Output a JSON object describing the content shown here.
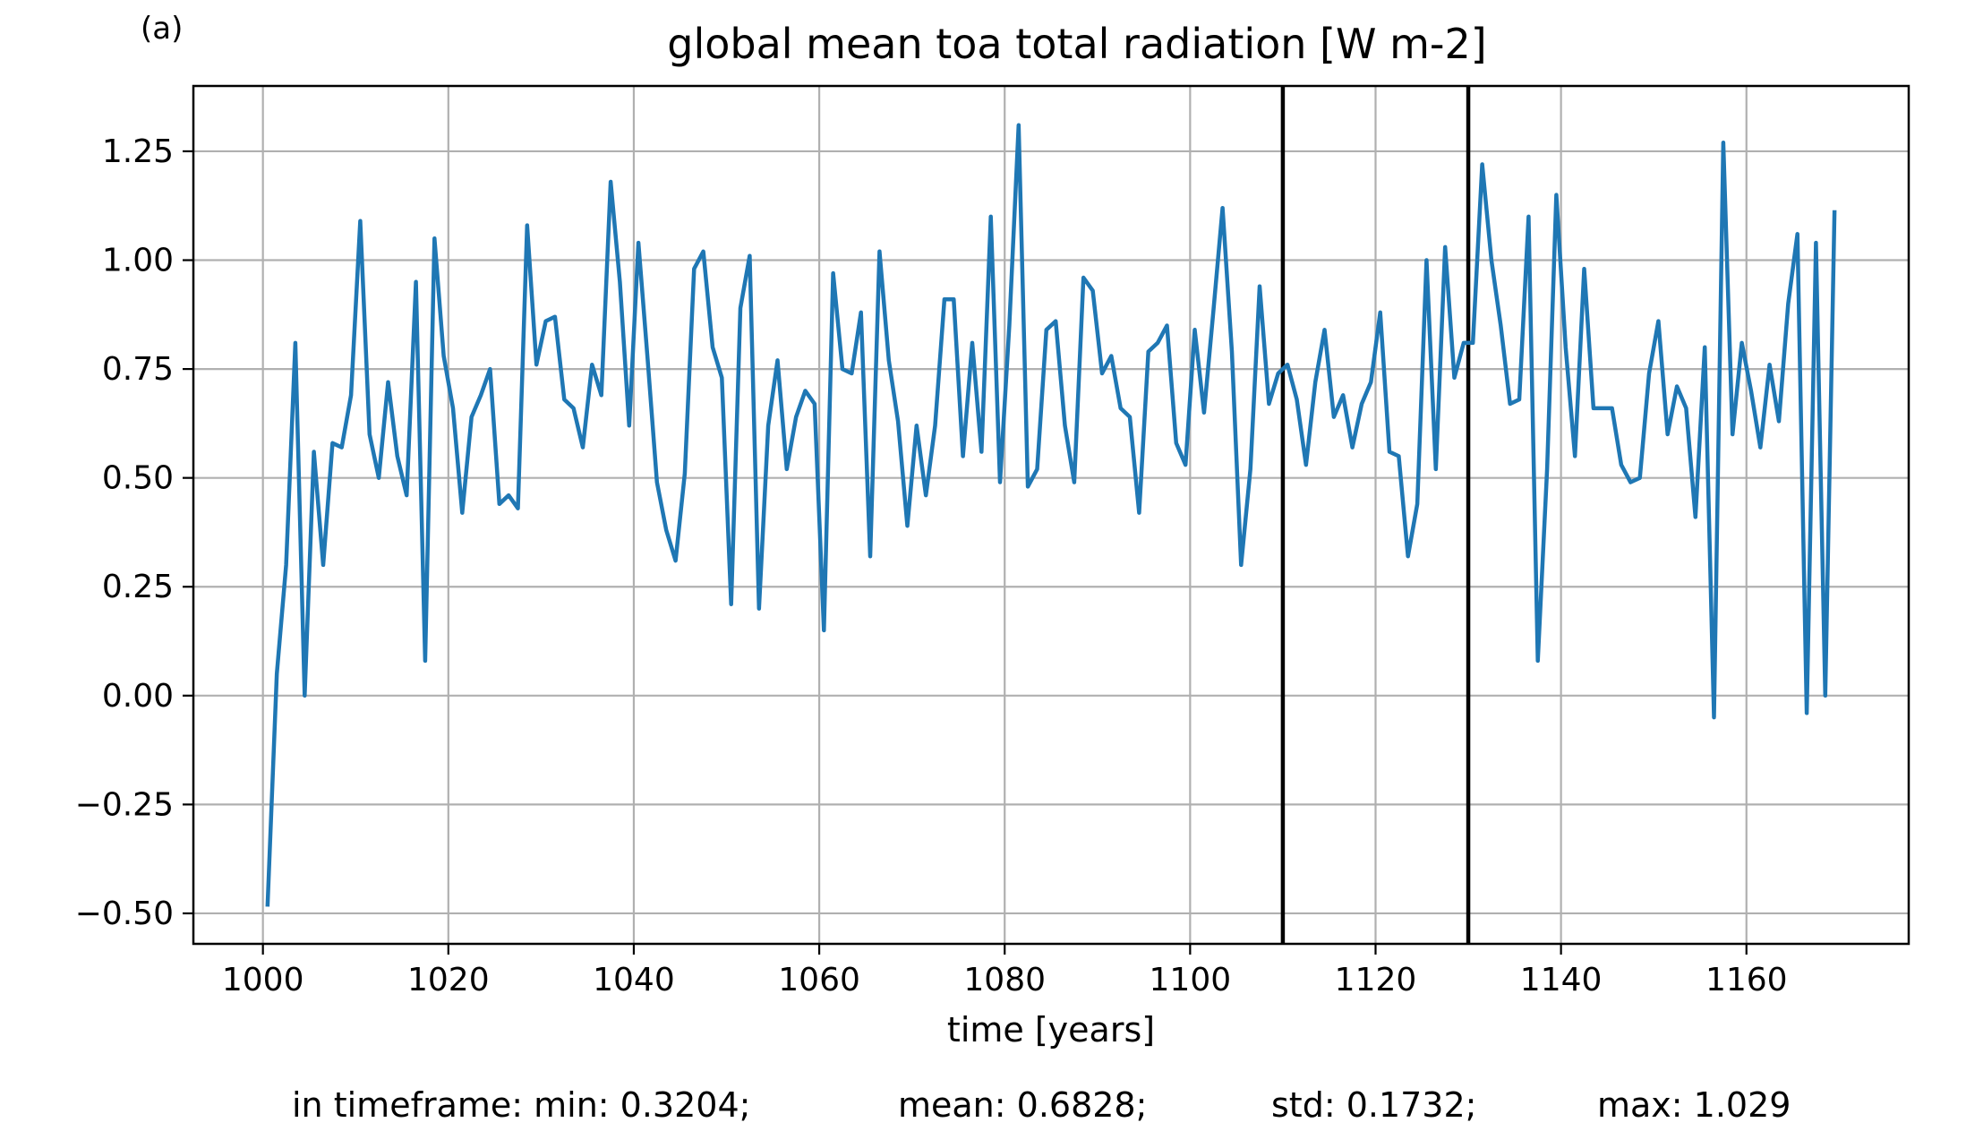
{
  "panel_label": "(a)",
  "chart_data": {
    "type": "line",
    "title": "global mean toa total radiation [W m-2]",
    "xlabel": "time [years]",
    "ylabel": "",
    "xlim": [
      992.5,
      1177.5
    ],
    "ylim": [
      -0.57,
      1.4
    ],
    "xticks": [
      1000,
      1020,
      1040,
      1060,
      1080,
      1100,
      1120,
      1140,
      1160
    ],
    "yticks": [
      -0.5,
      -0.25,
      0.0,
      0.25,
      0.5,
      0.75,
      1.0,
      1.25
    ],
    "ytick_labels": [
      "−0.50",
      "−0.25",
      "0.00",
      "0.25",
      "0.50",
      "0.75",
      "1.00",
      "1.25"
    ],
    "grid": true,
    "line_color": "#1f77b4",
    "vlines": [
      1110,
      1130
    ],
    "vline_color": "#000000",
    "series": [
      {
        "x": [
          1000.5,
          1001.5,
          1002.5,
          1003.5,
          1004.5,
          1005.5,
          1006.5,
          1007.5,
          1008.5,
          1009.5,
          1010.5,
          1011.5,
          1012.5,
          1013.5,
          1014.5,
          1015.5,
          1016.5,
          1017.5,
          1018.5,
          1019.5,
          1020.5,
          1021.5,
          1022.5,
          1023.5,
          1024.5,
          1025.5,
          1026.5,
          1027.5,
          1028.5,
          1029.5,
          1030.5,
          1031.5,
          1032.5,
          1033.5,
          1034.5,
          1035.5,
          1036.5,
          1037.5,
          1038.5,
          1039.5,
          1040.5,
          1041.5,
          1042.5,
          1043.5,
          1044.5,
          1045.5,
          1046.5,
          1047.5,
          1048.5,
          1049.5,
          1050.5,
          1051.5,
          1052.5,
          1053.5,
          1054.5,
          1055.5,
          1056.5,
          1057.5,
          1058.5,
          1059.5,
          1060.5,
          1061.5,
          1062.5,
          1063.5,
          1064.5,
          1065.5,
          1066.5,
          1067.5,
          1068.5,
          1069.5,
          1070.5,
          1071.5,
          1072.5,
          1073.5,
          1074.5,
          1075.5,
          1076.5,
          1077.5,
          1078.5,
          1079.5,
          1080.5,
          1081.5,
          1082.5,
          1083.5,
          1084.5,
          1085.5,
          1086.5,
          1087.5,
          1088.5,
          1089.5,
          1090.5,
          1091.5,
          1092.5,
          1093.5,
          1094.5,
          1095.5,
          1096.5,
          1097.5,
          1098.5,
          1099.5,
          1100.5,
          1101.5,
          1102.5,
          1103.5,
          1104.5,
          1105.5,
          1106.5,
          1107.5,
          1108.5,
          1109.5,
          1110.5,
          1111.5,
          1112.5,
          1113.5,
          1114.5,
          1115.5,
          1116.5,
          1117.5,
          1118.5,
          1119.5,
          1120.5,
          1121.5,
          1122.5,
          1123.5,
          1124.5,
          1125.5,
          1126.5,
          1127.5,
          1128.5,
          1129.5,
          1130.5,
          1131.5,
          1132.5,
          1133.5,
          1134.5,
          1135.5,
          1136.5,
          1137.5,
          1138.5,
          1139.5,
          1140.5,
          1141.5,
          1142.5,
          1143.5,
          1144.5,
          1145.5,
          1146.5,
          1147.5,
          1148.5,
          1149.5,
          1150.5,
          1151.5,
          1152.5,
          1153.5,
          1154.5,
          1155.5,
          1156.5,
          1157.5,
          1158.5,
          1159.5,
          1160.5,
          1161.5,
          1162.5,
          1163.5,
          1164.5,
          1165.5,
          1166.5,
          1167.5,
          1168.5,
          1169.5
        ],
        "y": [
          -0.48,
          0.05,
          0.3,
          0.81,
          0.0,
          0.56,
          0.3,
          0.58,
          0.57,
          0.69,
          1.09,
          0.6,
          0.5,
          0.72,
          0.55,
          0.46,
          0.95,
          0.08,
          1.05,
          0.78,
          0.66,
          0.42,
          0.64,
          0.69,
          0.75,
          0.44,
          0.46,
          0.43,
          1.08,
          0.76,
          0.86,
          0.87,
          0.68,
          0.66,
          0.57,
          0.76,
          0.69,
          1.18,
          0.95,
          0.62,
          1.04,
          0.77,
          0.49,
          0.38,
          0.31,
          0.51,
          0.98,
          1.02,
          0.8,
          0.73,
          0.21,
          0.89,
          1.01,
          0.2,
          0.62,
          0.77,
          0.52,
          0.64,
          0.7,
          0.67,
          0.15,
          0.97,
          0.75,
          0.74,
          0.88,
          0.32,
          1.02,
          0.77,
          0.63,
          0.39,
          0.62,
          0.46,
          0.62,
          0.91,
          0.91,
          0.55,
          0.81,
          0.56,
          1.1,
          0.49,
          0.85,
          1.31,
          0.48,
          0.52,
          0.84,
          0.86,
          0.62,
          0.49,
          0.96,
          0.93,
          0.74,
          0.78,
          0.66,
          0.64,
          0.42,
          0.79,
          0.81,
          0.85,
          0.58,
          0.53,
          0.84,
          0.65,
          0.88,
          1.12,
          0.79,
          0.3,
          0.52,
          0.94,
          0.67,
          0.74,
          0.76,
          0.68,
          0.53,
          0.72,
          0.84,
          0.64,
          0.69,
          0.57,
          0.67,
          0.72,
          0.88,
          0.56,
          0.55,
          0.32,
          0.44,
          1.0,
          0.52,
          1.03,
          0.73,
          0.81,
          0.81,
          1.22,
          1.0,
          0.85,
          0.67,
          0.68,
          1.1,
          0.08,
          0.52,
          1.15,
          0.8,
          0.55,
          0.98,
          0.66,
          0.66,
          0.66,
          0.53,
          0.49,
          0.5,
          0.74,
          0.86,
          0.6,
          0.71,
          0.66,
          0.41,
          0.8,
          -0.05,
          1.27,
          0.6,
          0.81,
          0.7,
          0.57,
          0.76,
          0.63,
          0.9,
          1.06,
          -0.04,
          1.04,
          0.0,
          1.11
        ]
      }
    ]
  },
  "stats": {
    "min": "in timeframe: min: 0.3204;",
    "mean": "mean: 0.6828;",
    "std": "std: 0.1732;",
    "max": "max: 1.029"
  }
}
